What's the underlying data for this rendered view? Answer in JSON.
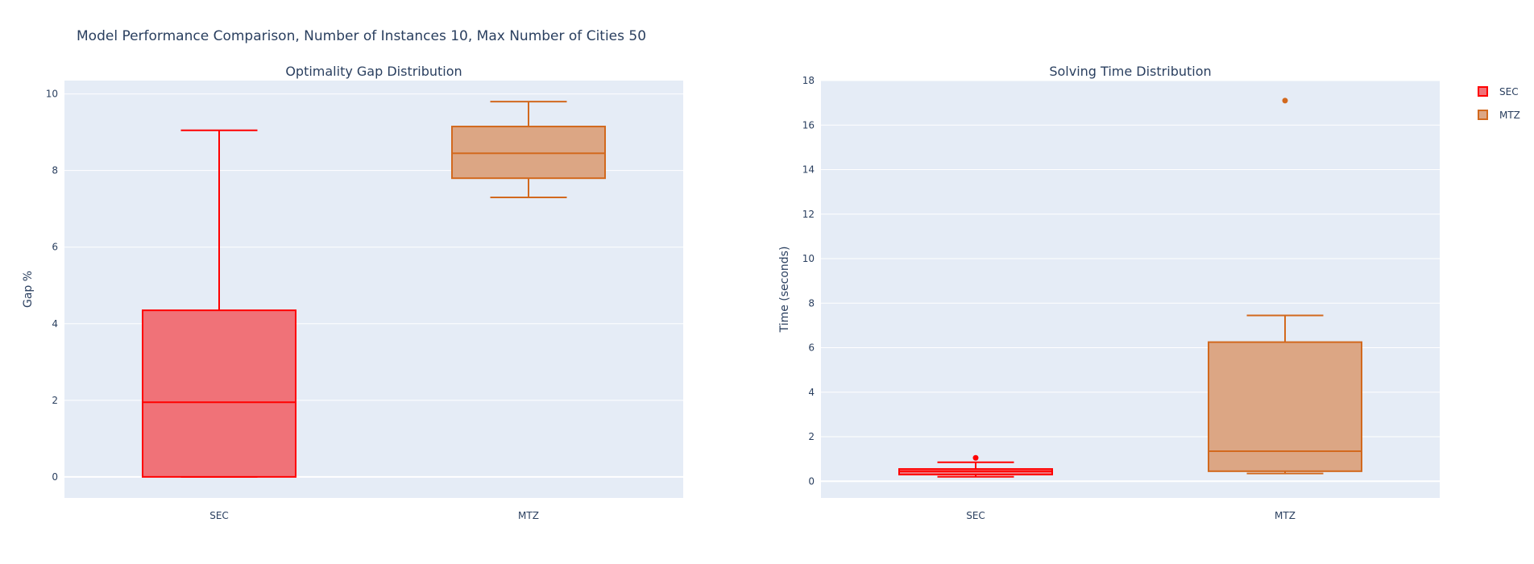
{
  "title": "Model Performance Comparison, Number of Instances 10, Max Number of Cities 50",
  "legend": {
    "placement": "top-right",
    "items": [
      {
        "label": "SEC",
        "color": "#ff0000"
      },
      {
        "label": "MTZ",
        "color": "#d2691e"
      }
    ]
  },
  "colors": {
    "plot_bg": "#e5ecf6",
    "grid": "#ffffff",
    "text": "#2a3f5f",
    "sec_line": "#ff0000",
    "sec_fill": "#f07278",
    "mtz_line": "#d2691e",
    "mtz_fill": "#dca684"
  },
  "chart_data": [
    {
      "type": "box",
      "title": "Optimality Gap Distribution",
      "xlabel": "",
      "ylabel": "Gap %",
      "categories": [
        "SEC",
        "MTZ"
      ],
      "ylim": [
        -0.55,
        10.35
      ],
      "yticks": [
        0,
        2,
        4,
        6,
        8,
        10
      ],
      "grid": true,
      "series": [
        {
          "name": "SEC",
          "min": 0,
          "q1": 0,
          "median": 1.95,
          "q3": 4.35,
          "max": 9.05,
          "outliers": []
        },
        {
          "name": "MTZ",
          "min": 7.3,
          "q1": 7.8,
          "median": 8.45,
          "q3": 9.15,
          "max": 9.8,
          "outliers": []
        }
      ]
    },
    {
      "type": "box",
      "title": "Solving Time Distribution",
      "xlabel": "",
      "ylabel": "Time (seconds)",
      "categories": [
        "SEC",
        "MTZ"
      ],
      "ylim": [
        -0.75,
        18.0
      ],
      "yticks": [
        0,
        2,
        4,
        6,
        8,
        10,
        12,
        14,
        16,
        18
      ],
      "grid": true,
      "series": [
        {
          "name": "SEC",
          "min": 0.2,
          "q1": 0.3,
          "median": 0.45,
          "q3": 0.55,
          "max": 0.85,
          "outliers": [
            1.05
          ]
        },
        {
          "name": "MTZ",
          "min": 0.35,
          "q1": 0.45,
          "median": 1.35,
          "q3": 6.25,
          "max": 7.45,
          "outliers": [
            17.1
          ]
        }
      ]
    }
  ]
}
